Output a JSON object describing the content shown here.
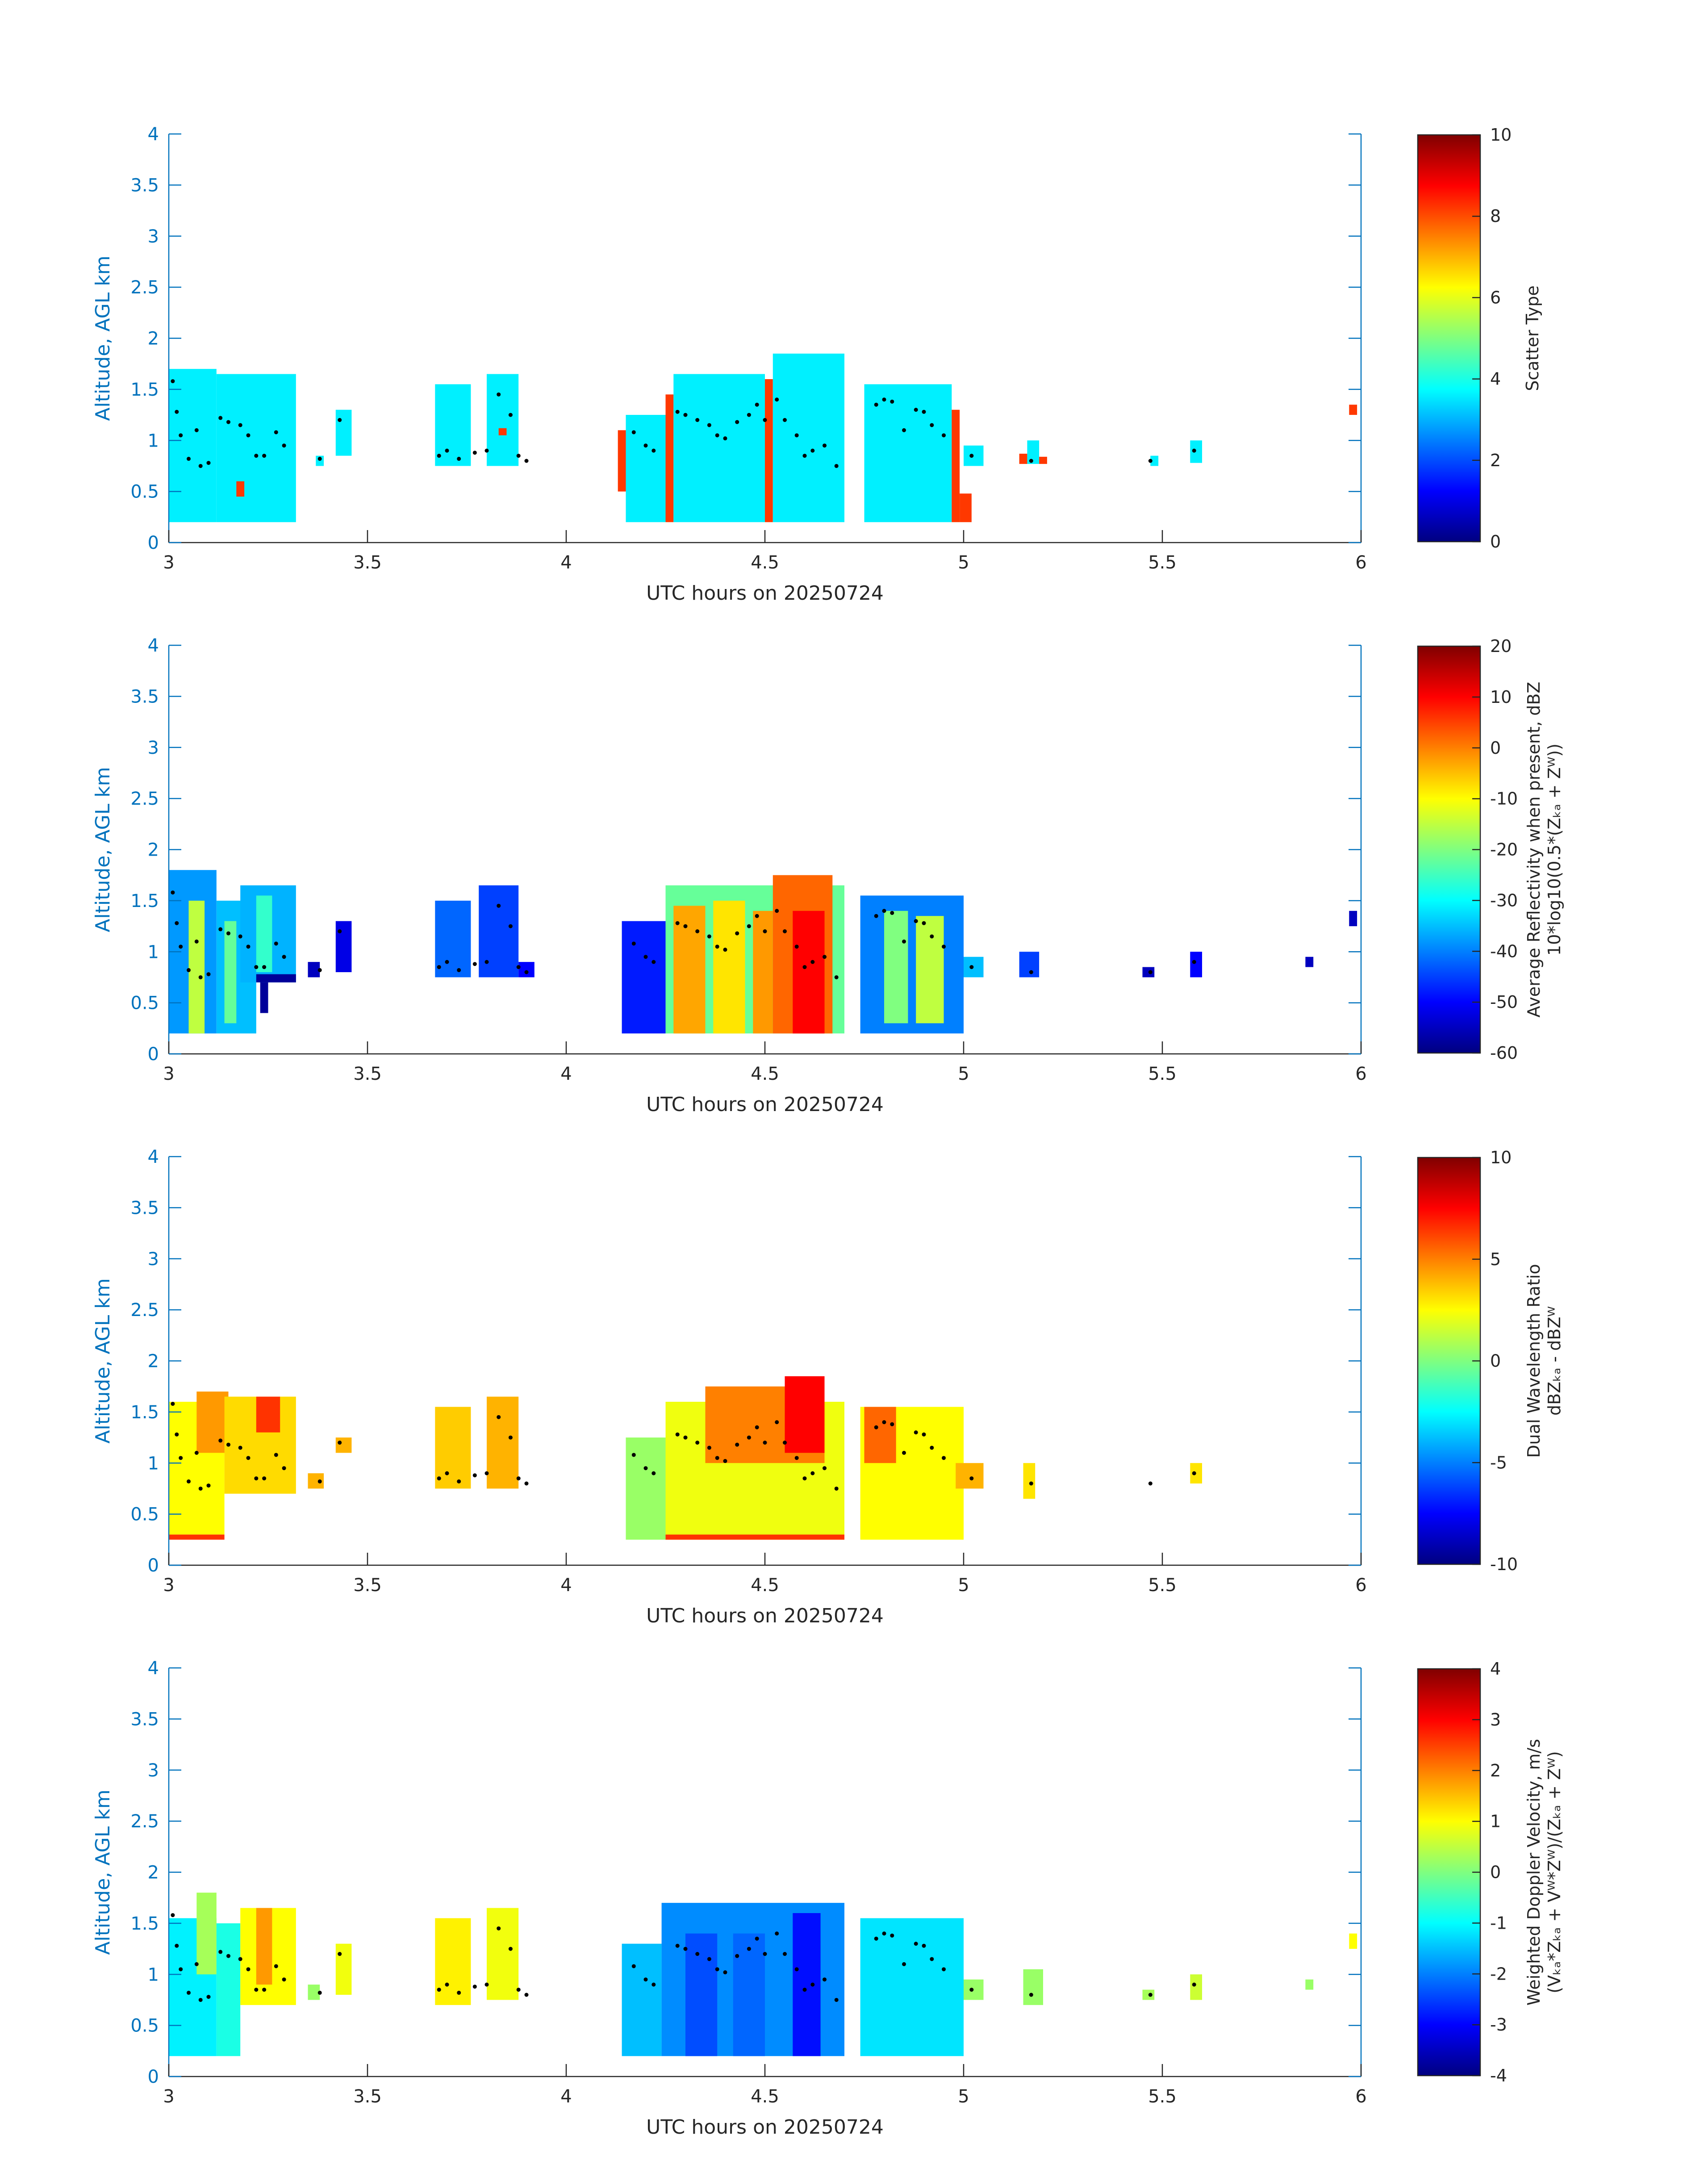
{
  "figure": {
    "xlabel": "UTC hours on 20250724",
    "ylabel": "Altitude, AGL km",
    "axis_color": "#0072BD",
    "text_color": "#262626",
    "colormap": "jet"
  },
  "chart_data": [
    {
      "type": "heatmap",
      "title": "",
      "xlabel": "UTC hours on 20250724",
      "ylabel": "Altitude, AGL km",
      "xlim": [
        3,
        6
      ],
      "ylim": [
        0,
        4
      ],
      "x_ticks": [
        "3",
        "3.5",
        "4",
        "4.5",
        "5",
        "5.5",
        "6"
      ],
      "y_ticks": [
        "0",
        "0.5",
        "1",
        "1.5",
        "2",
        "2.5",
        "3",
        "3.5",
        "4"
      ],
      "colorbar": {
        "range": [
          0,
          10
        ],
        "ticks": [
          "0",
          "2",
          "4",
          "6",
          "8",
          "10"
        ],
        "label_lines": [
          "Scatter Type"
        ]
      },
      "cells": [
        {
          "x0": 3.0,
          "x1": 3.12,
          "y0": 0.2,
          "y1": 1.7,
          "v": 3.6
        },
        {
          "x0": 3.12,
          "x1": 3.32,
          "y0": 0.2,
          "y1": 1.65,
          "v": 3.6
        },
        {
          "x0": 3.17,
          "x1": 3.19,
          "y0": 0.45,
          "y1": 0.6,
          "v": 8.2
        },
        {
          "x0": 3.37,
          "x1": 3.39,
          "y0": 0.75,
          "y1": 0.85,
          "v": 3.6
        },
        {
          "x0": 3.42,
          "x1": 3.46,
          "y0": 0.85,
          "y1": 1.3,
          "v": 3.6
        },
        {
          "x0": 3.67,
          "x1": 3.76,
          "y0": 0.75,
          "y1": 1.55,
          "v": 3.6
        },
        {
          "x0": 3.8,
          "x1": 3.88,
          "y0": 0.75,
          "y1": 1.65,
          "v": 3.6
        },
        {
          "x0": 3.83,
          "x1": 3.85,
          "y0": 1.05,
          "y1": 1.12,
          "v": 8.2
        },
        {
          "x0": 4.13,
          "x1": 4.15,
          "y0": 0.5,
          "y1": 1.1,
          "v": 8.2
        },
        {
          "x0": 4.15,
          "x1": 4.25,
          "y0": 0.2,
          "y1": 1.25,
          "v": 3.6
        },
        {
          "x0": 4.25,
          "x1": 4.27,
          "y0": 0.2,
          "y1": 1.45,
          "v": 8.2
        },
        {
          "x0": 4.27,
          "x1": 4.5,
          "y0": 0.2,
          "y1": 1.65,
          "v": 3.6
        },
        {
          "x0": 4.5,
          "x1": 4.52,
          "y0": 0.2,
          "y1": 1.6,
          "v": 8.2
        },
        {
          "x0": 4.52,
          "x1": 4.7,
          "y0": 0.2,
          "y1": 1.85,
          "v": 3.6
        },
        {
          "x0": 4.75,
          "x1": 4.97,
          "y0": 0.2,
          "y1": 1.55,
          "v": 3.6
        },
        {
          "x0": 4.97,
          "x1": 4.99,
          "y0": 0.2,
          "y1": 1.3,
          "v": 8.2
        },
        {
          "x0": 4.99,
          "x1": 5.02,
          "y0": 0.2,
          "y1": 0.48,
          "v": 8.2
        },
        {
          "x0": 5.0,
          "x1": 5.05,
          "y0": 0.75,
          "y1": 0.95,
          "v": 3.6
        },
        {
          "x0": 5.14,
          "x1": 5.16,
          "y0": 0.77,
          "y1": 0.87,
          "v": 8.2
        },
        {
          "x0": 5.16,
          "x1": 5.19,
          "y0": 0.77,
          "y1": 1.0,
          "v": 3.6
        },
        {
          "x0": 5.19,
          "x1": 5.21,
          "y0": 0.77,
          "y1": 0.84,
          "v": 8.2
        },
        {
          "x0": 5.47,
          "x1": 5.49,
          "y0": 0.75,
          "y1": 0.85,
          "v": 3.6
        },
        {
          "x0": 5.57,
          "x1": 5.6,
          "y0": 0.78,
          "y1": 1.0,
          "v": 3.6
        },
        {
          "x0": 5.97,
          "x1": 5.99,
          "y0": 1.25,
          "y1": 1.35,
          "v": 8.2
        }
      ]
    },
    {
      "type": "heatmap",
      "title": "",
      "xlabel": "UTC hours on 20250724",
      "ylabel": "Altitude, AGL km",
      "xlim": [
        3,
        6
      ],
      "ylim": [
        0,
        4
      ],
      "x_ticks": [
        "3",
        "3.5",
        "4",
        "4.5",
        "5",
        "5.5",
        "6"
      ],
      "y_ticks": [
        "0",
        "0.5",
        "1",
        "1.5",
        "2",
        "2.5",
        "3",
        "3.5",
        "4"
      ],
      "colorbar": {
        "range": [
          -60,
          20
        ],
        "ticks": [
          "-60",
          "-50",
          "-40",
          "-30",
          "-20",
          "-10",
          "0",
          "10",
          "20"
        ],
        "label_lines": [
          "Average Reflectivity when present, dBZ",
          "10*log10(0.5*(Zₖₐ + Zᵂ))"
        ]
      },
      "cells": [
        {
          "x0": 3.0,
          "x1": 3.12,
          "y0": 0.2,
          "y1": 1.8,
          "v": -38
        },
        {
          "x0": 3.05,
          "x1": 3.09,
          "y0": 0.2,
          "y1": 1.5,
          "v": -15
        },
        {
          "x0": 3.12,
          "x1": 3.22,
          "y0": 0.2,
          "y1": 1.5,
          "v": -35
        },
        {
          "x0": 3.14,
          "x1": 3.17,
          "y0": 0.3,
          "y1": 1.3,
          "v": -22
        },
        {
          "x0": 3.18,
          "x1": 3.32,
          "y0": 0.7,
          "y1": 1.65,
          "v": -36
        },
        {
          "x0": 3.22,
          "x1": 3.26,
          "y0": 0.8,
          "y1": 1.55,
          "v": -26
        },
        {
          "x0": 3.22,
          "x1": 3.32,
          "y0": 0.7,
          "y1": 0.78,
          "v": -58
        },
        {
          "x0": 3.23,
          "x1": 3.25,
          "y0": 0.4,
          "y1": 0.7,
          "v": -58
        },
        {
          "x0": 3.35,
          "x1": 3.38,
          "y0": 0.75,
          "y1": 0.9,
          "v": -55
        },
        {
          "x0": 3.42,
          "x1": 3.46,
          "y0": 0.8,
          "y1": 1.3,
          "v": -52
        },
        {
          "x0": 3.67,
          "x1": 3.76,
          "y0": 0.75,
          "y1": 1.5,
          "v": -42
        },
        {
          "x0": 3.78,
          "x1": 3.88,
          "y0": 0.75,
          "y1": 1.65,
          "v": -45
        },
        {
          "x0": 3.88,
          "x1": 3.92,
          "y0": 0.75,
          "y1": 0.9,
          "v": -50
        },
        {
          "x0": 4.14,
          "x1": 4.25,
          "y0": 0.2,
          "y1": 1.3,
          "v": -48
        },
        {
          "x0": 4.25,
          "x1": 4.7,
          "y0": 0.2,
          "y1": 1.65,
          "v": -22
        },
        {
          "x0": 4.27,
          "x1": 4.35,
          "y0": 0.2,
          "y1": 1.45,
          "v": -3
        },
        {
          "x0": 4.37,
          "x1": 4.45,
          "y0": 0.2,
          "y1": 1.5,
          "v": -8
        },
        {
          "x0": 4.47,
          "x1": 4.52,
          "y0": 0.2,
          "y1": 1.4,
          "v": -2
        },
        {
          "x0": 4.52,
          "x1": 4.67,
          "y0": 0.2,
          "y1": 1.75,
          "v": 2
        },
        {
          "x0": 4.57,
          "x1": 4.65,
          "y0": 0.2,
          "y1": 1.4,
          "v": 10
        },
        {
          "x0": 4.74,
          "x1": 5.0,
          "y0": 0.2,
          "y1": 1.55,
          "v": -40
        },
        {
          "x0": 4.8,
          "x1": 4.86,
          "y0": 0.3,
          "y1": 1.4,
          "v": -20
        },
        {
          "x0": 4.88,
          "x1": 4.95,
          "y0": 0.3,
          "y1": 1.35,
          "v": -15
        },
        {
          "x0": 5.0,
          "x1": 5.05,
          "y0": 0.75,
          "y1": 0.95,
          "v": -35
        },
        {
          "x0": 5.14,
          "x1": 5.19,
          "y0": 0.75,
          "y1": 1.0,
          "v": -45
        },
        {
          "x0": 5.45,
          "x1": 5.48,
          "y0": 0.75,
          "y1": 0.85,
          "v": -55
        },
        {
          "x0": 5.57,
          "x1": 5.6,
          "y0": 0.75,
          "y1": 1.0,
          "v": -50
        },
        {
          "x0": 5.86,
          "x1": 5.88,
          "y0": 0.85,
          "y1": 0.95,
          "v": -55
        },
        {
          "x0": 5.97,
          "x1": 5.99,
          "y0": 1.25,
          "y1": 1.4,
          "v": -55
        }
      ]
    },
    {
      "type": "heatmap",
      "title": "",
      "xlabel": "UTC hours on 20250724",
      "ylabel": "Altitude, AGL km",
      "xlim": [
        3,
        6
      ],
      "ylim": [
        0,
        4
      ],
      "x_ticks": [
        "3",
        "3.5",
        "4",
        "4.5",
        "5",
        "5.5",
        "6"
      ],
      "y_ticks": [
        "0",
        "0.5",
        "1",
        "1.5",
        "2",
        "2.5",
        "3",
        "3.5",
        "4"
      ],
      "colorbar": {
        "range": [
          -10,
          10
        ],
        "ticks": [
          "-10",
          "-5",
          "0",
          "5",
          "10"
        ],
        "label_lines": [
          "Dual Wavelength Ratio",
          "dBZₖₐ - dBZᵂ"
        ]
      },
      "cells": [
        {
          "x0": 3.0,
          "x1": 3.14,
          "y0": 0.3,
          "y1": 1.6,
          "v": 2.5
        },
        {
          "x0": 3.07,
          "x1": 3.15,
          "y0": 1.1,
          "y1": 1.7,
          "v": 4.5
        },
        {
          "x0": 3.0,
          "x1": 3.14,
          "y0": 0.25,
          "y1": 0.3,
          "v": 6.5
        },
        {
          "x0": 3.14,
          "x1": 3.32,
          "y0": 0.7,
          "y1": 1.65,
          "v": 3.2
        },
        {
          "x0": 3.22,
          "x1": 3.28,
          "y0": 1.3,
          "y1": 1.65,
          "v": 6.5
        },
        {
          "x0": 3.35,
          "x1": 3.39,
          "y0": 0.75,
          "y1": 0.9,
          "v": 4
        },
        {
          "x0": 3.42,
          "x1": 3.46,
          "y0": 1.1,
          "y1": 1.25,
          "v": 4
        },
        {
          "x0": 3.67,
          "x1": 3.76,
          "y0": 0.75,
          "y1": 1.55,
          "v": 3.5
        },
        {
          "x0": 3.8,
          "x1": 3.88,
          "y0": 0.75,
          "y1": 1.65,
          "v": 4
        },
        {
          "x0": 4.15,
          "x1": 4.25,
          "y0": 0.25,
          "y1": 1.25,
          "v": 0.5
        },
        {
          "x0": 4.25,
          "x1": 4.7,
          "y0": 0.25,
          "y1": 1.6,
          "v": 2.2
        },
        {
          "x0": 4.35,
          "x1": 4.65,
          "y0": 1.0,
          "y1": 1.75,
          "v": 5
        },
        {
          "x0": 4.55,
          "x1": 4.65,
          "y0": 1.1,
          "y1": 1.85,
          "v": 7.5
        },
        {
          "x0": 4.25,
          "x1": 4.7,
          "y0": 0.25,
          "y1": 0.3,
          "v": 6.5
        },
        {
          "x0": 4.74,
          "x1": 5.0,
          "y0": 0.25,
          "y1": 1.55,
          "v": 2.5
        },
        {
          "x0": 4.75,
          "x1": 4.83,
          "y0": 1.0,
          "y1": 1.55,
          "v": 5.5
        },
        {
          "x0": 4.98,
          "x1": 5.05,
          "y0": 0.75,
          "y1": 1.0,
          "v": 4
        },
        {
          "x0": 5.15,
          "x1": 5.18,
          "y0": 0.65,
          "y1": 1.0,
          "v": 3
        },
        {
          "x0": 5.57,
          "x1": 5.6,
          "y0": 0.8,
          "y1": 1.0,
          "v": 3
        }
      ]
    },
    {
      "type": "heatmap",
      "title": "",
      "xlabel": "UTC hours on 20250724",
      "ylabel": "Altitude, AGL km",
      "xlim": [
        3,
        6
      ],
      "ylim": [
        0,
        4
      ],
      "x_ticks": [
        "3",
        "3.5",
        "4",
        "4.5",
        "5",
        "5.5",
        "6"
      ],
      "y_ticks": [
        "0",
        "0.5",
        "1",
        "1.5",
        "2",
        "2.5",
        "3",
        "3.5",
        "4"
      ],
      "colorbar": {
        "range": [
          -4,
          4
        ],
        "ticks": [
          "-4",
          "-3",
          "-2",
          "-1",
          "0",
          "1",
          "2",
          "3",
          "4"
        ],
        "label_lines": [
          "Weighted Doppler Velocity, m/s",
          "(Vₖₐ*Zₖₐ + Vᵂ*Zᵂ)/(Zₖₐ + Zᵂ)"
        ]
      },
      "cells": [
        {
          "x0": 3.0,
          "x1": 3.12,
          "y0": 0.2,
          "y1": 1.55,
          "v": -1.1
        },
        {
          "x0": 3.07,
          "x1": 3.12,
          "y0": 1.0,
          "y1": 1.8,
          "v": 0.3
        },
        {
          "x0": 3.12,
          "x1": 3.18,
          "y0": 0.2,
          "y1": 1.5,
          "v": -0.8
        },
        {
          "x0": 3.18,
          "x1": 3.32,
          "y0": 0.7,
          "y1": 1.65,
          "v": 1.0
        },
        {
          "x0": 3.22,
          "x1": 3.26,
          "y0": 0.9,
          "y1": 1.65,
          "v": 1.8
        },
        {
          "x0": 3.35,
          "x1": 3.38,
          "y0": 0.75,
          "y1": 0.9,
          "v": 0.2
        },
        {
          "x0": 3.42,
          "x1": 3.46,
          "y0": 0.8,
          "y1": 1.3,
          "v": 0.9
        },
        {
          "x0": 3.67,
          "x1": 3.76,
          "y0": 0.7,
          "y1": 1.55,
          "v": 1.1
        },
        {
          "x0": 3.8,
          "x1": 3.88,
          "y0": 0.75,
          "y1": 1.65,
          "v": 0.9
        },
        {
          "x0": 4.14,
          "x1": 4.24,
          "y0": 0.2,
          "y1": 1.3,
          "v": -1.5
        },
        {
          "x0": 4.24,
          "x1": 4.7,
          "y0": 0.2,
          "y1": 1.7,
          "v": -1.9
        },
        {
          "x0": 4.3,
          "x1": 4.38,
          "y0": 0.2,
          "y1": 1.4,
          "v": -2.4
        },
        {
          "x0": 4.42,
          "x1": 4.5,
          "y0": 0.2,
          "y1": 1.4,
          "v": -2.2
        },
        {
          "x0": 4.57,
          "x1": 4.64,
          "y0": 0.2,
          "y1": 1.6,
          "v": -2.9
        },
        {
          "x0": 4.74,
          "x1": 5.0,
          "y0": 0.2,
          "y1": 1.55,
          "v": -1.2
        },
        {
          "x0": 5.0,
          "x1": 5.05,
          "y0": 0.75,
          "y1": 0.95,
          "v": 0.2
        },
        {
          "x0": 5.15,
          "x1": 5.2,
          "y0": 0.7,
          "y1": 1.05,
          "v": 0.2
        },
        {
          "x0": 5.45,
          "x1": 5.48,
          "y0": 0.75,
          "y1": 0.85,
          "v": 0.3
        },
        {
          "x0": 5.57,
          "x1": 5.6,
          "y0": 0.75,
          "y1": 1.0,
          "v": 0.6
        },
        {
          "x0": 5.86,
          "x1": 5.88,
          "y0": 0.85,
          "y1": 0.95,
          "v": 0.2
        },
        {
          "x0": 5.97,
          "x1": 5.99,
          "y0": 1.25,
          "y1": 1.4,
          "v": 1.0
        }
      ]
    }
  ],
  "markers": [
    [
      3.01,
      1.58
    ],
    [
      3.02,
      1.28
    ],
    [
      3.03,
      1.05
    ],
    [
      3.05,
      0.82
    ],
    [
      3.07,
      1.1
    ],
    [
      3.08,
      0.75
    ],
    [
      3.1,
      0.78
    ],
    [
      3.13,
      1.22
    ],
    [
      3.15,
      1.18
    ],
    [
      3.18,
      1.15
    ],
    [
      3.2,
      1.05
    ],
    [
      3.22,
      0.85
    ],
    [
      3.24,
      0.85
    ],
    [
      3.27,
      1.08
    ],
    [
      3.29,
      0.95
    ],
    [
      3.38,
      0.82
    ],
    [
      3.43,
      1.2
    ],
    [
      3.68,
      0.85
    ],
    [
      3.7,
      0.9
    ],
    [
      3.73,
      0.82
    ],
    [
      3.77,
      0.88
    ],
    [
      3.8,
      0.9
    ],
    [
      3.83,
      1.45
    ],
    [
      3.86,
      1.25
    ],
    [
      3.88,
      0.85
    ],
    [
      3.9,
      0.8
    ],
    [
      4.17,
      1.08
    ],
    [
      4.2,
      0.95
    ],
    [
      4.22,
      0.9
    ],
    [
      4.28,
      1.28
    ],
    [
      4.3,
      1.25
    ],
    [
      4.33,
      1.2
    ],
    [
      4.36,
      1.15
    ],
    [
      4.38,
      1.05
    ],
    [
      4.4,
      1.02
    ],
    [
      4.43,
      1.18
    ],
    [
      4.46,
      1.25
    ],
    [
      4.48,
      1.35
    ],
    [
      4.5,
      1.2
    ],
    [
      4.53,
      1.4
    ],
    [
      4.55,
      1.2
    ],
    [
      4.58,
      1.05
    ],
    [
      4.6,
      0.85
    ],
    [
      4.62,
      0.9
    ],
    [
      4.65,
      0.95
    ],
    [
      4.68,
      0.75
    ],
    [
      4.78,
      1.35
    ],
    [
      4.8,
      1.4
    ],
    [
      4.82,
      1.38
    ],
    [
      4.85,
      1.1
    ],
    [
      4.88,
      1.3
    ],
    [
      4.9,
      1.28
    ],
    [
      4.92,
      1.15
    ],
    [
      4.95,
      1.05
    ],
    [
      5.02,
      0.85
    ],
    [
      5.17,
      0.8
    ],
    [
      5.47,
      0.8
    ],
    [
      5.58,
      0.9
    ]
  ]
}
